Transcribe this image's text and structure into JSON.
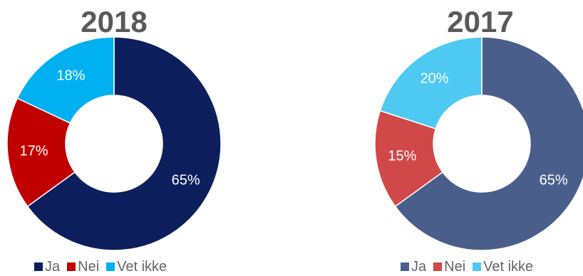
{
  "chart_data": [
    {
      "type": "donut",
      "title": "2018",
      "categories": [
        "Ja",
        "Nei",
        "Vet ikke"
      ],
      "values": [
        65,
        17,
        18
      ],
      "labels": [
        "65%",
        "17%",
        "18%"
      ],
      "colors": [
        "#0c1f5c",
        "#c00000",
        "#00b0f0"
      ],
      "legend_position": "bottom"
    },
    {
      "type": "donut",
      "title": "2017",
      "categories": [
        "Ja",
        "Nei",
        "Vet ikke"
      ],
      "values": [
        65,
        15,
        20
      ],
      "labels": [
        "65%",
        "15%",
        "20%"
      ],
      "colors": [
        "#4a5e8c",
        "#d04848",
        "#4ec9f2"
      ],
      "legend_position": "bottom"
    }
  ]
}
